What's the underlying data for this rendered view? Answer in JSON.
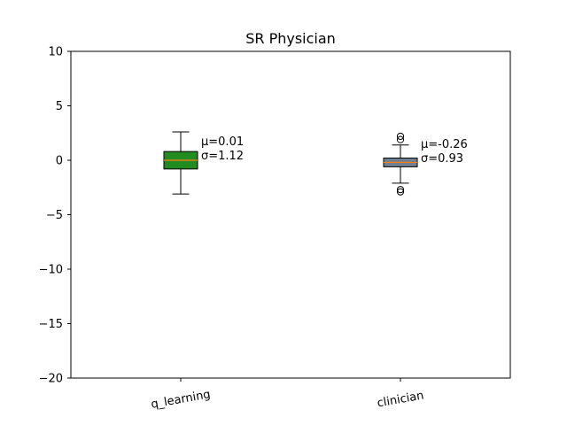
{
  "chart_data": {
    "type": "box",
    "title": "SR Physician",
    "xlabel": "",
    "ylabel": "",
    "ylim": [
      -20,
      10
    ],
    "yticks": [
      10,
      5,
      0,
      -5,
      -10,
      -15,
      -20
    ],
    "ytick_labels": [
      "10",
      "5",
      "0",
      "−5",
      "−10",
      "−15",
      "−20"
    ],
    "categories": [
      "q_learning",
      "clinician"
    ],
    "grid": false,
    "boxes": [
      {
        "category": "q_learning",
        "color": "#228b22",
        "median": 0.0,
        "q1": -0.8,
        "q3": 0.8,
        "whisker_low": -3.1,
        "whisker_high": 2.6,
        "outliers": [],
        "annotation": [
          "μ=0.01",
          "σ=1.12"
        ]
      },
      {
        "category": "clinician",
        "color": "#708090",
        "median": -0.2,
        "q1": -0.6,
        "q3": 0.2,
        "whisker_low": -2.1,
        "whisker_high": 1.4,
        "outliers": [
          2.2,
          1.9,
          -2.7,
          -2.9
        ],
        "annotation": [
          "μ=-0.26",
          "σ=0.93"
        ]
      }
    ],
    "median_color": "#ff7f0e"
  }
}
